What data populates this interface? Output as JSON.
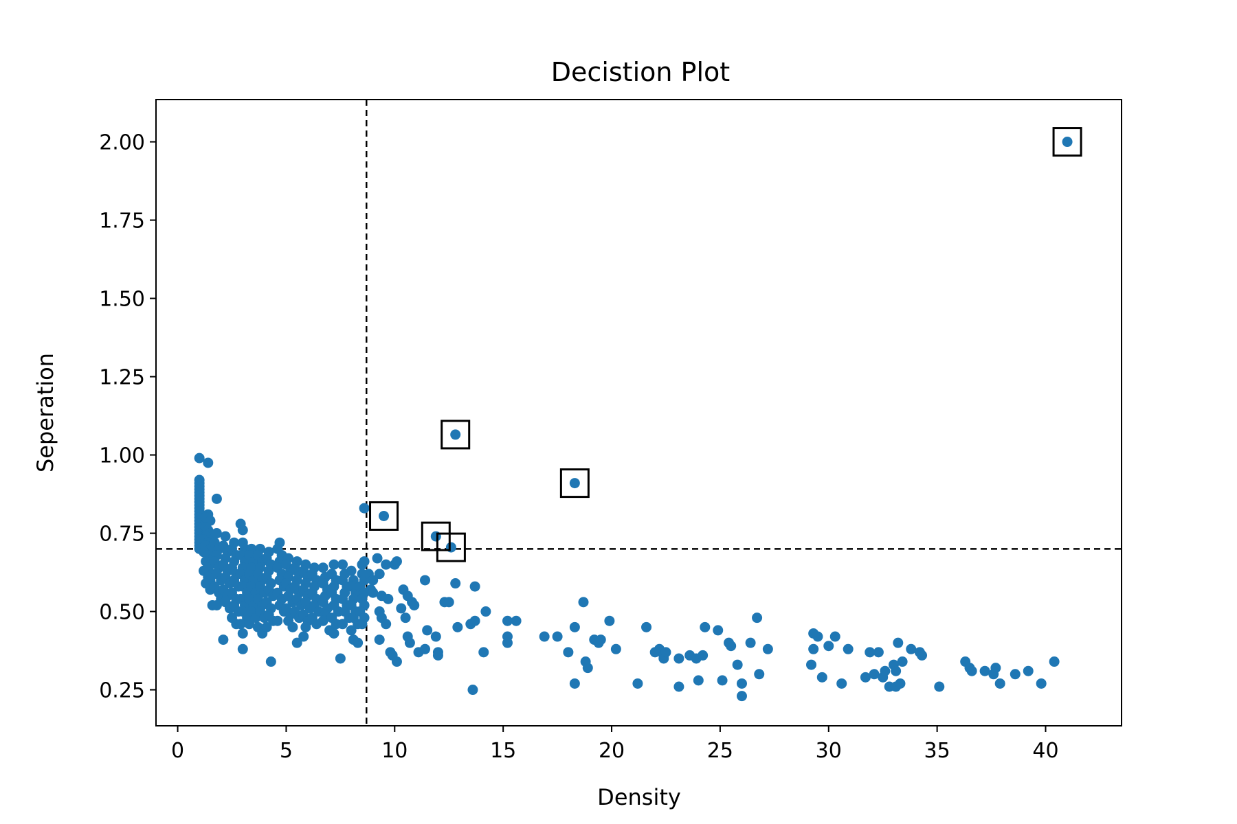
{
  "chart_data": {
    "type": "scatter",
    "title": "Decistion Plot",
    "xlabel": "Density",
    "ylabel": "Seperation",
    "xlim": [
      -1,
      43.5
    ],
    "ylim": [
      0.135,
      2.135
    ],
    "xticks": [
      0,
      5,
      10,
      15,
      20,
      25,
      30,
      35,
      40
    ],
    "xtick_labels": [
      "0",
      "5",
      "10",
      "15",
      "20",
      "25",
      "30",
      "35",
      "40"
    ],
    "yticks": [
      0.25,
      0.5,
      0.75,
      1.0,
      1.25,
      1.5,
      1.75,
      2.0
    ],
    "ytick_labels": [
      "0.25",
      "0.50",
      "0.75",
      "1.00",
      "1.25",
      "1.50",
      "1.75",
      "2.00"
    ],
    "grid": false,
    "point_color": "#1f77b4",
    "thresholds": {
      "density": 8.7,
      "separation": 0.7
    },
    "centers": [
      {
        "x": 41.0,
        "y": 2.0
      },
      {
        "x": 12.8,
        "y": 1.065
      },
      {
        "x": 18.3,
        "y": 0.91
      },
      {
        "x": 9.5,
        "y": 0.805
      },
      {
        "x": 11.9,
        "y": 0.74
      },
      {
        "x": 12.6,
        "y": 0.705
      }
    ],
    "points": [
      [
        1.0,
        0.99
      ],
      [
        1.4,
        0.975
      ],
      [
        1.0,
        0.92
      ],
      [
        1.0,
        0.91
      ],
      [
        1.0,
        0.9
      ],
      [
        1.0,
        0.89
      ],
      [
        1.0,
        0.88
      ],
      [
        1.0,
        0.87
      ],
      [
        1.0,
        0.86
      ],
      [
        1.0,
        0.85
      ],
      [
        1.0,
        0.84
      ],
      [
        1.0,
        0.83
      ],
      [
        1.0,
        0.82
      ],
      [
        1.0,
        0.81
      ],
      [
        1.0,
        0.8
      ],
      [
        1.0,
        0.79
      ],
      [
        1.0,
        0.78
      ],
      [
        1.0,
        0.77
      ],
      [
        1.0,
        0.76
      ],
      [
        1.0,
        0.75
      ],
      [
        1.0,
        0.74
      ],
      [
        1.0,
        0.73
      ],
      [
        1.0,
        0.72
      ],
      [
        1.0,
        0.71
      ],
      [
        1.0,
        0.7
      ],
      [
        1.8,
        0.86
      ],
      [
        1.4,
        0.81
      ],
      [
        1.3,
        0.8
      ],
      [
        1.5,
        0.79
      ],
      [
        1.3,
        0.77
      ],
      [
        1.4,
        0.76
      ],
      [
        1.5,
        0.75
      ],
      [
        1.3,
        0.74
      ],
      [
        1.2,
        0.73
      ],
      [
        1.6,
        0.73
      ],
      [
        1.4,
        0.72
      ],
      [
        1.3,
        0.71
      ],
      [
        1.5,
        0.7
      ],
      [
        1.2,
        0.69
      ],
      [
        1.4,
        0.68
      ],
      [
        1.6,
        0.67
      ],
      [
        1.3,
        0.66
      ],
      [
        1.5,
        0.65
      ],
      [
        1.4,
        0.64
      ],
      [
        1.2,
        0.63
      ],
      [
        1.6,
        0.62
      ],
      [
        1.4,
        0.61
      ],
      [
        1.5,
        0.6
      ],
      [
        1.3,
        0.59
      ],
      [
        1.6,
        0.58
      ],
      [
        1.5,
        0.57
      ],
      [
        1.6,
        0.52
      ],
      [
        1.8,
        0.75
      ],
      [
        1.7,
        0.72
      ],
      [
        1.9,
        0.7
      ],
      [
        1.8,
        0.68
      ],
      [
        1.7,
        0.66
      ],
      [
        1.9,
        0.64
      ],
      [
        1.8,
        0.62
      ],
      [
        2.0,
        0.6
      ],
      [
        1.7,
        0.58
      ],
      [
        1.9,
        0.56
      ],
      [
        2.0,
        0.54
      ],
      [
        1.8,
        0.52
      ],
      [
        2.2,
        0.74
      ],
      [
        2.1,
        0.71
      ],
      [
        2.3,
        0.69
      ],
      [
        2.2,
        0.67
      ],
      [
        2.1,
        0.65
      ],
      [
        2.3,
        0.63
      ],
      [
        2.2,
        0.61
      ],
      [
        2.4,
        0.59
      ],
      [
        2.1,
        0.57
      ],
      [
        2.3,
        0.55
      ],
      [
        2.2,
        0.53
      ],
      [
        2.4,
        0.51
      ],
      [
        2.1,
        0.41
      ],
      [
        2.6,
        0.72
      ],
      [
        2.5,
        0.7
      ],
      [
        2.7,
        0.68
      ],
      [
        2.6,
        0.66
      ],
      [
        2.5,
        0.64
      ],
      [
        2.7,
        0.62
      ],
      [
        2.6,
        0.6
      ],
      [
        2.8,
        0.58
      ],
      [
        2.5,
        0.56
      ],
      [
        2.7,
        0.54
      ],
      [
        2.6,
        0.52
      ],
      [
        2.8,
        0.5
      ],
      [
        2.5,
        0.48
      ],
      [
        2.7,
        0.46
      ],
      [
        2.9,
        0.78
      ],
      [
        3.0,
        0.76
      ],
      [
        3.0,
        0.72
      ],
      [
        3.1,
        0.7
      ],
      [
        2.9,
        0.68
      ],
      [
        3.1,
        0.66
      ],
      [
        3.0,
        0.64
      ],
      [
        2.9,
        0.62
      ],
      [
        3.1,
        0.6
      ],
      [
        3.0,
        0.58
      ],
      [
        3.2,
        0.56
      ],
      [
        2.9,
        0.54
      ],
      [
        3.1,
        0.52
      ],
      [
        3.0,
        0.5
      ],
      [
        3.2,
        0.48
      ],
      [
        2.9,
        0.46
      ],
      [
        3.0,
        0.43
      ],
      [
        3.0,
        0.38
      ],
      [
        3.4,
        0.7
      ],
      [
        3.3,
        0.68
      ],
      [
        3.5,
        0.66
      ],
      [
        3.4,
        0.64
      ],
      [
        3.3,
        0.62
      ],
      [
        3.5,
        0.6
      ],
      [
        3.4,
        0.58
      ],
      [
        3.6,
        0.56
      ],
      [
        3.3,
        0.54
      ],
      [
        3.5,
        0.52
      ],
      [
        3.4,
        0.5
      ],
      [
        3.6,
        0.48
      ],
      [
        3.3,
        0.46
      ],
      [
        3.8,
        0.7
      ],
      [
        3.7,
        0.68
      ],
      [
        3.9,
        0.66
      ],
      [
        3.8,
        0.64
      ],
      [
        3.7,
        0.62
      ],
      [
        3.9,
        0.6
      ],
      [
        3.8,
        0.58
      ],
      [
        4.0,
        0.56
      ],
      [
        3.7,
        0.54
      ],
      [
        3.9,
        0.52
      ],
      [
        3.8,
        0.5
      ],
      [
        4.0,
        0.48
      ],
      [
        3.7,
        0.45
      ],
      [
        3.9,
        0.43
      ],
      [
        4.2,
        0.69
      ],
      [
        4.1,
        0.67
      ],
      [
        4.3,
        0.65
      ],
      [
        4.2,
        0.63
      ],
      [
        4.1,
        0.61
      ],
      [
        4.3,
        0.59
      ],
      [
        4.2,
        0.57
      ],
      [
        4.4,
        0.55
      ],
      [
        4.1,
        0.53
      ],
      [
        4.3,
        0.51
      ],
      [
        4.2,
        0.49
      ],
      [
        4.4,
        0.47
      ],
      [
        4.1,
        0.45
      ],
      [
        4.3,
        0.34
      ],
      [
        4.7,
        0.72
      ],
      [
        4.6,
        0.7
      ],
      [
        4.8,
        0.68
      ],
      [
        4.7,
        0.66
      ],
      [
        4.6,
        0.64
      ],
      [
        4.8,
        0.62
      ],
      [
        4.7,
        0.6
      ],
      [
        4.9,
        0.58
      ],
      [
        4.6,
        0.56
      ],
      [
        4.8,
        0.54
      ],
      [
        4.7,
        0.52
      ],
      [
        4.9,
        0.5
      ],
      [
        4.6,
        0.47
      ],
      [
        5.1,
        0.67
      ],
      [
        5.0,
        0.65
      ],
      [
        5.2,
        0.63
      ],
      [
        5.1,
        0.61
      ],
      [
        5.0,
        0.59
      ],
      [
        5.2,
        0.57
      ],
      [
        5.1,
        0.55
      ],
      [
        5.3,
        0.53
      ],
      [
        5.0,
        0.51
      ],
      [
        5.2,
        0.49
      ],
      [
        5.1,
        0.47
      ],
      [
        5.3,
        0.45
      ],
      [
        5.5,
        0.66
      ],
      [
        5.4,
        0.64
      ],
      [
        5.6,
        0.62
      ],
      [
        5.5,
        0.6
      ],
      [
        5.4,
        0.58
      ],
      [
        5.6,
        0.56
      ],
      [
        5.5,
        0.54
      ],
      [
        5.7,
        0.52
      ],
      [
        5.4,
        0.5
      ],
      [
        5.6,
        0.48
      ],
      [
        5.5,
        0.4
      ],
      [
        5.9,
        0.65
      ],
      [
        5.8,
        0.63
      ],
      [
        6.0,
        0.61
      ],
      [
        5.9,
        0.59
      ],
      [
        5.8,
        0.57
      ],
      [
        6.0,
        0.55
      ],
      [
        5.9,
        0.53
      ],
      [
        6.1,
        0.51
      ],
      [
        5.8,
        0.49
      ],
      [
        6.0,
        0.47
      ],
      [
        5.9,
        0.45
      ],
      [
        5.8,
        0.42
      ],
      [
        6.3,
        0.64
      ],
      [
        6.2,
        0.62
      ],
      [
        6.4,
        0.6
      ],
      [
        6.3,
        0.58
      ],
      [
        6.2,
        0.56
      ],
      [
        6.4,
        0.54
      ],
      [
        6.3,
        0.52
      ],
      [
        6.5,
        0.5
      ],
      [
        6.2,
        0.48
      ],
      [
        6.4,
        0.46
      ],
      [
        6.7,
        0.64
      ],
      [
        6.8,
        0.61
      ],
      [
        6.7,
        0.59
      ],
      [
        6.9,
        0.57
      ],
      [
        6.8,
        0.55
      ],
      [
        6.7,
        0.53
      ],
      [
        6.9,
        0.51
      ],
      [
        6.8,
        0.49
      ],
      [
        6.7,
        0.47
      ],
      [
        7.0,
        0.44
      ],
      [
        7.2,
        0.65
      ],
      [
        7.1,
        0.62
      ],
      [
        7.3,
        0.6
      ],
      [
        7.2,
        0.58
      ],
      [
        7.1,
        0.56
      ],
      [
        7.3,
        0.54
      ],
      [
        7.2,
        0.52
      ],
      [
        7.4,
        0.5
      ],
      [
        7.1,
        0.48
      ],
      [
        7.3,
        0.46
      ],
      [
        7.2,
        0.43
      ],
      [
        7.5,
        0.35
      ],
      [
        7.6,
        0.65
      ],
      [
        7.7,
        0.62
      ],
      [
        7.6,
        0.6
      ],
      [
        7.8,
        0.58
      ],
      [
        7.7,
        0.56
      ],
      [
        7.6,
        0.54
      ],
      [
        7.8,
        0.52
      ],
      [
        7.7,
        0.5
      ],
      [
        7.9,
        0.48
      ],
      [
        7.6,
        0.46
      ],
      [
        8.0,
        0.63
      ],
      [
        8.1,
        0.6
      ],
      [
        8.0,
        0.58
      ],
      [
        8.2,
        0.56
      ],
      [
        8.1,
        0.54
      ],
      [
        8.0,
        0.52
      ],
      [
        8.2,
        0.5
      ],
      [
        8.1,
        0.48
      ],
      [
        8.3,
        0.46
      ],
      [
        8.0,
        0.44
      ],
      [
        8.1,
        0.41
      ],
      [
        8.3,
        0.4
      ],
      [
        8.5,
        0.65
      ],
      [
        8.6,
        0.66
      ],
      [
        8.5,
        0.62
      ],
      [
        8.6,
        0.6
      ],
      [
        8.4,
        0.58
      ],
      [
        8.6,
        0.56
      ],
      [
        8.5,
        0.54
      ],
      [
        8.6,
        0.52
      ],
      [
        8.4,
        0.5
      ],
      [
        8.6,
        0.48
      ],
      [
        8.5,
        0.46
      ],
      [
        8.6,
        0.83
      ],
      [
        8.8,
        0.62
      ],
      [
        8.9,
        0.57
      ],
      [
        9.0,
        0.6
      ],
      [
        9.2,
        0.67
      ],
      [
        9.0,
        0.56
      ],
      [
        9.3,
        0.62
      ],
      [
        9.4,
        0.55
      ],
      [
        9.3,
        0.5
      ],
      [
        9.4,
        0.48
      ],
      [
        9.3,
        0.41
      ],
      [
        9.6,
        0.65
      ],
      [
        9.6,
        0.46
      ],
      [
        9.7,
        0.54
      ],
      [
        9.8,
        0.37
      ],
      [
        9.9,
        0.36
      ],
      [
        10.0,
        0.65
      ],
      [
        10.1,
        0.66
      ],
      [
        10.1,
        0.34
      ],
      [
        10.3,
        0.51
      ],
      [
        10.4,
        0.57
      ],
      [
        10.5,
        0.48
      ],
      [
        10.6,
        0.55
      ],
      [
        10.6,
        0.42
      ],
      [
        10.7,
        0.4
      ],
      [
        10.8,
        0.53
      ],
      [
        10.9,
        0.52
      ],
      [
        11.1,
        0.37
      ],
      [
        11.4,
        0.38
      ],
      [
        11.4,
        0.6
      ],
      [
        11.5,
        0.44
      ],
      [
        11.9,
        0.42
      ],
      [
        12.0,
        0.37
      ],
      [
        12.0,
        0.36
      ],
      [
        12.3,
        0.53
      ],
      [
        12.5,
        0.53
      ],
      [
        12.8,
        0.59
      ],
      [
        12.9,
        0.45
      ],
      [
        13.5,
        0.46
      ],
      [
        13.6,
        0.25
      ],
      [
        13.7,
        0.58
      ],
      [
        13.7,
        0.47
      ],
      [
        14.1,
        0.37
      ],
      [
        14.2,
        0.5
      ],
      [
        15.2,
        0.42
      ],
      [
        15.2,
        0.4
      ],
      [
        15.2,
        0.47
      ],
      [
        15.6,
        0.47
      ],
      [
        16.9,
        0.42
      ],
      [
        17.5,
        0.42
      ],
      [
        18.0,
        0.37
      ],
      [
        18.3,
        0.27
      ],
      [
        18.3,
        0.45
      ],
      [
        18.7,
        0.53
      ],
      [
        18.8,
        0.34
      ],
      [
        18.9,
        0.32
      ],
      [
        19.2,
        0.41
      ],
      [
        19.4,
        0.4
      ],
      [
        19.5,
        0.41
      ],
      [
        19.9,
        0.47
      ],
      [
        20.2,
        0.38
      ],
      [
        21.2,
        0.27
      ],
      [
        21.6,
        0.45
      ],
      [
        22.0,
        0.37
      ],
      [
        22.2,
        0.38
      ],
      [
        22.4,
        0.36
      ],
      [
        22.4,
        0.35
      ],
      [
        22.5,
        0.37
      ],
      [
        23.1,
        0.35
      ],
      [
        23.1,
        0.26
      ],
      [
        23.6,
        0.36
      ],
      [
        23.9,
        0.35
      ],
      [
        24.0,
        0.28
      ],
      [
        24.2,
        0.36
      ],
      [
        24.3,
        0.45
      ],
      [
        24.9,
        0.44
      ],
      [
        25.1,
        0.28
      ],
      [
        25.4,
        0.4
      ],
      [
        25.5,
        0.39
      ],
      [
        25.8,
        0.33
      ],
      [
        26.0,
        0.27
      ],
      [
        26.0,
        0.23
      ],
      [
        26.4,
        0.4
      ],
      [
        26.7,
        0.48
      ],
      [
        26.8,
        0.3
      ],
      [
        27.2,
        0.38
      ],
      [
        29.2,
        0.33
      ],
      [
        29.3,
        0.38
      ],
      [
        29.3,
        0.43
      ],
      [
        29.5,
        0.42
      ],
      [
        29.7,
        0.29
      ],
      [
        30.0,
        0.39
      ],
      [
        30.3,
        0.42
      ],
      [
        30.6,
        0.27
      ],
      [
        30.9,
        0.38
      ],
      [
        31.7,
        0.29
      ],
      [
        31.9,
        0.37
      ],
      [
        32.1,
        0.3
      ],
      [
        32.3,
        0.37
      ],
      [
        32.5,
        0.29
      ],
      [
        32.6,
        0.31
      ],
      [
        32.8,
        0.26
      ],
      [
        33.0,
        0.33
      ],
      [
        33.1,
        0.31
      ],
      [
        33.1,
        0.26
      ],
      [
        33.2,
        0.4
      ],
      [
        33.3,
        0.27
      ],
      [
        33.4,
        0.34
      ],
      [
        33.8,
        0.38
      ],
      [
        34.2,
        0.37
      ],
      [
        34.3,
        0.36
      ],
      [
        35.1,
        0.26
      ],
      [
        36.3,
        0.34
      ],
      [
        36.5,
        0.32
      ],
      [
        36.6,
        0.31
      ],
      [
        37.2,
        0.31
      ],
      [
        37.6,
        0.3
      ],
      [
        37.7,
        0.32
      ],
      [
        37.9,
        0.27
      ],
      [
        38.6,
        0.3
      ],
      [
        39.2,
        0.31
      ],
      [
        39.8,
        0.27
      ],
      [
        40.4,
        0.34
      ],
      [
        41.0,
        2.0
      ],
      [
        12.8,
        1.065
      ],
      [
        18.3,
        0.91
      ],
      [
        9.5,
        0.805
      ],
      [
        11.9,
        0.74
      ],
      [
        12.6,
        0.705
      ]
    ]
  }
}
